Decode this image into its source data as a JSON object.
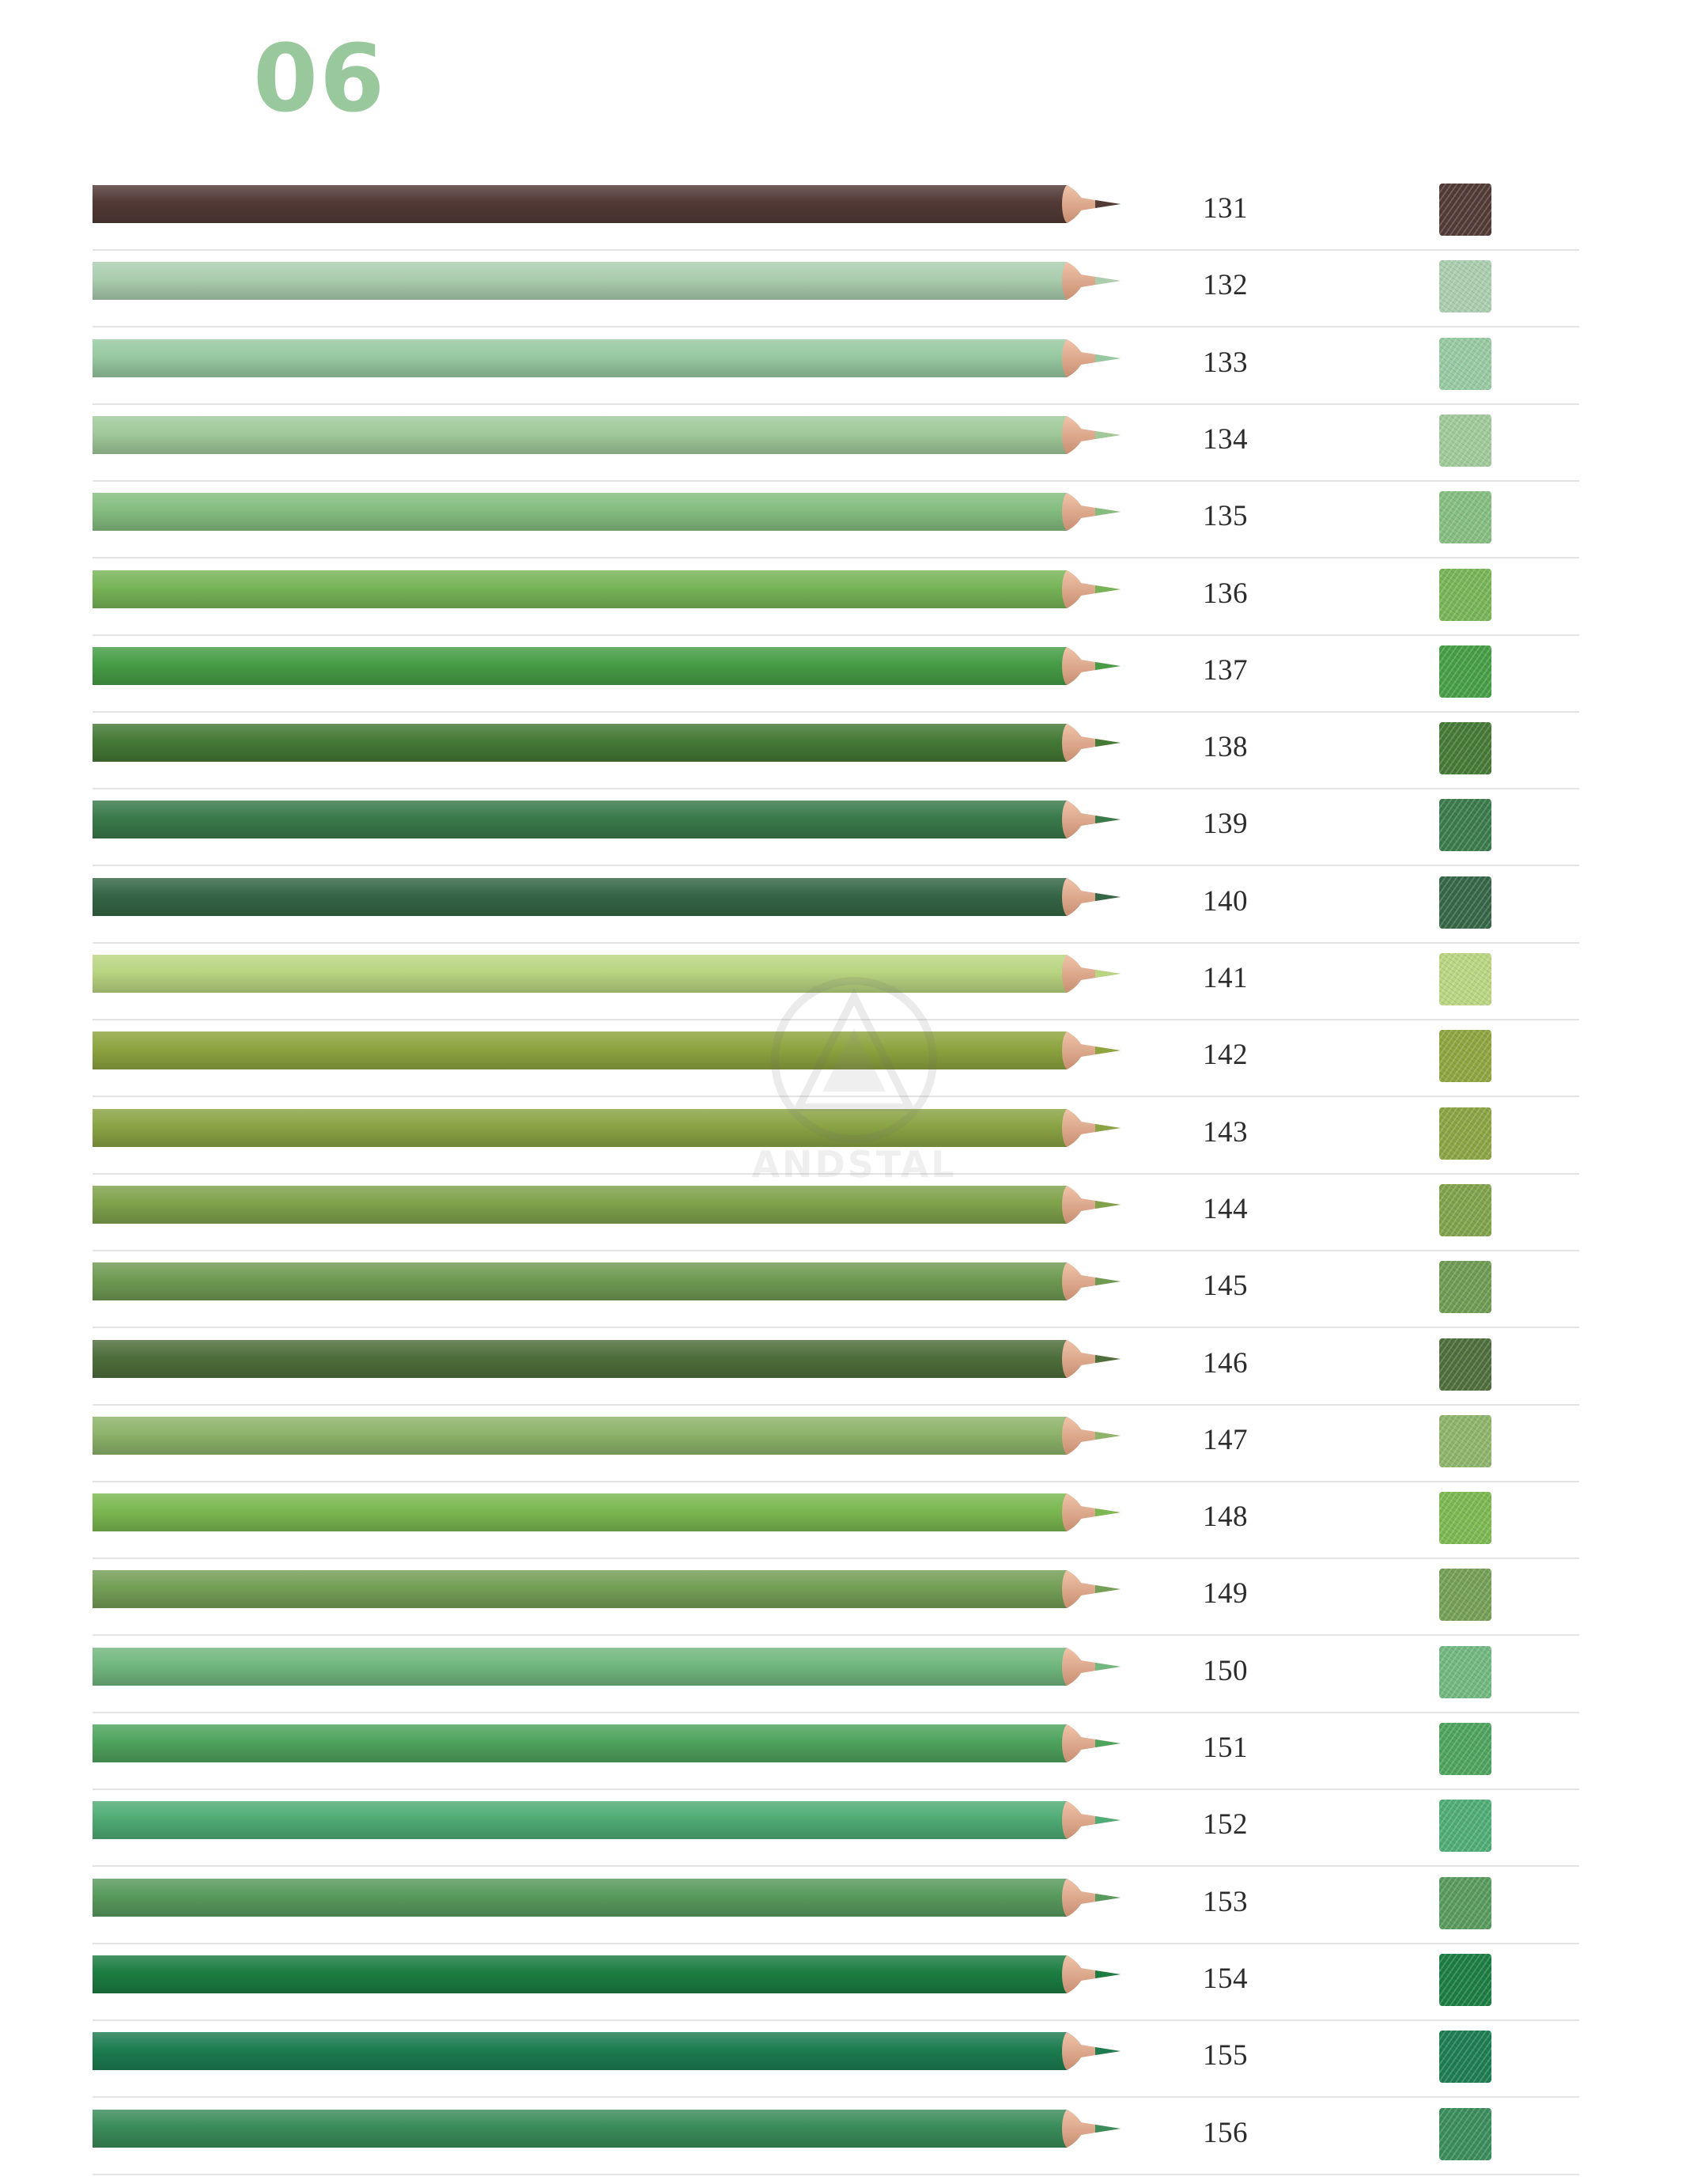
{
  "page": {
    "title": "06",
    "title_color": "#9ac89d"
  },
  "watermark": {
    "text": "ANDSTAL"
  },
  "pencils": [
    {
      "code": "131",
      "color": "#523a36"
    },
    {
      "code": "132",
      "color": "#aacdae"
    },
    {
      "code": "133",
      "color": "#97c9a1"
    },
    {
      "code": "134",
      "color": "#a0c99a"
    },
    {
      "code": "135",
      "color": "#84bd7f"
    },
    {
      "code": "136",
      "color": "#77b457"
    },
    {
      "code": "137",
      "color": "#469d46"
    },
    {
      "code": "138",
      "color": "#457936"
    },
    {
      "code": "139",
      "color": "#3a7a4b"
    },
    {
      "code": "140",
      "color": "#356646"
    },
    {
      "code": "141",
      "color": "#b9d581"
    },
    {
      "code": "142",
      "color": "#8da43f"
    },
    {
      "code": "143",
      "color": "#8aa444"
    },
    {
      "code": "144",
      "color": "#7fa24b"
    },
    {
      "code": "145",
      "color": "#6e9a52"
    },
    {
      "code": "146",
      "color": "#4e6e3c"
    },
    {
      "code": "147",
      "color": "#8eb36a"
    },
    {
      "code": "148",
      "color": "#7bb851"
    },
    {
      "code": "149",
      "color": "#749f57"
    },
    {
      "code": "150",
      "color": "#71b77f"
    },
    {
      "code": "151",
      "color": "#4ea35d"
    },
    {
      "code": "152",
      "color": "#4fac75"
    },
    {
      "code": "153",
      "color": "#589a5d"
    },
    {
      "code": "154",
      "color": "#1c7d42"
    },
    {
      "code": "155",
      "color": "#1d7d51"
    },
    {
      "code": "156",
      "color": "#3a8c5a"
    }
  ]
}
